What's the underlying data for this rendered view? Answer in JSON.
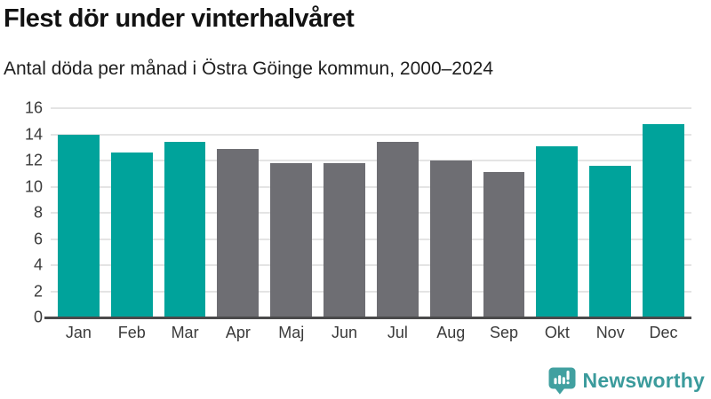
{
  "header": {
    "title": "Flest dör under vinterhalvåret",
    "subtitle": "Antal döda per månad i Östra Göinge kommun, 2000–2024"
  },
  "chart_data": {
    "type": "bar",
    "categories": [
      "Jan",
      "Feb",
      "Mar",
      "Apr",
      "Maj",
      "Jun",
      "Jul",
      "Aug",
      "Sep",
      "Okt",
      "Nov",
      "Dec"
    ],
    "values": [
      14.0,
      12.6,
      13.4,
      12.9,
      11.8,
      11.8,
      13.4,
      12.0,
      11.1,
      13.1,
      11.6,
      14.8
    ],
    "highlighted": [
      true,
      true,
      true,
      false,
      false,
      false,
      false,
      false,
      false,
      true,
      true,
      true
    ],
    "title": "Flest dör under vinterhalvåret",
    "subtitle": "Antal döda per månad i Östra Göinge kommun, 2000–2024",
    "xlabel": "",
    "ylabel": "",
    "ylim": [
      0,
      16
    ],
    "yticks": [
      0,
      2,
      4,
      6,
      8,
      10,
      12,
      14,
      16
    ],
    "grid": true,
    "legend": "none",
    "colors": {
      "highlight": "#00a39b",
      "default": "#6e6e73",
      "gridline": "#e4e4e4",
      "axis_line": "#4a4a4b",
      "tick_text": "#3a3a3a"
    }
  },
  "branding": {
    "logo_text": "Newsworthy",
    "logo_color": "#3b9b9c",
    "logo_icon": "bar-chart-speech-bubble-icon"
  }
}
